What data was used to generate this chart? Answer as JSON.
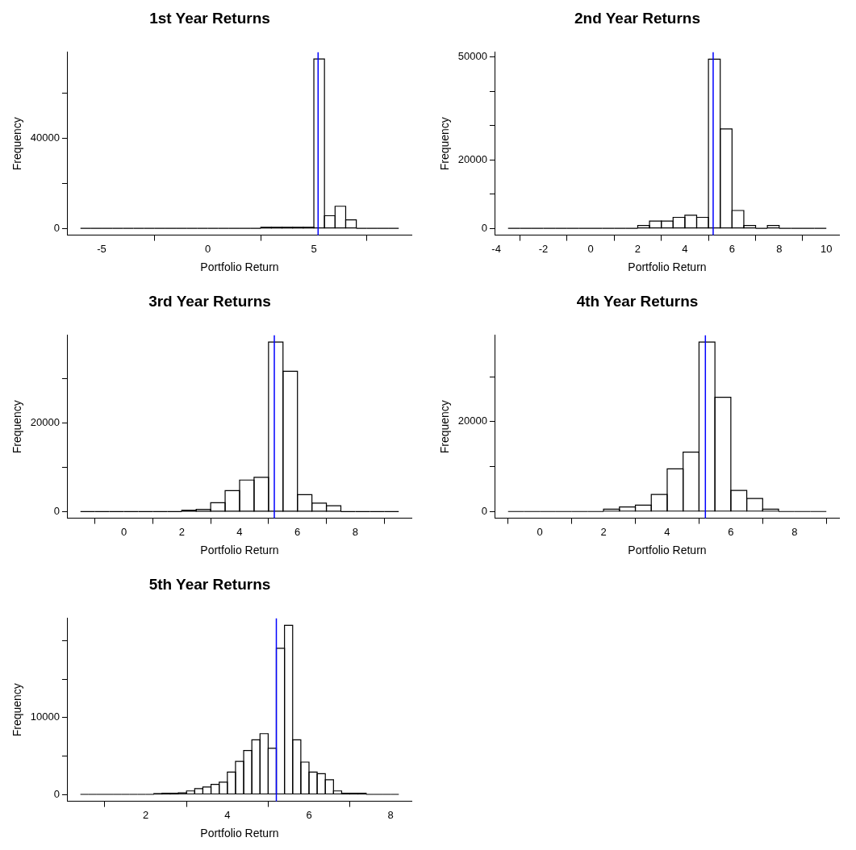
{
  "chart_data": [
    {
      "type": "histogram",
      "title": "1st Year Returns",
      "xlabel": "Portfolio Return",
      "ylabel": "Frequency",
      "bins": [
        -6,
        -5.5,
        -5,
        -4.5,
        -4,
        -3.5,
        -3,
        -2.5,
        -2,
        -1.5,
        -1,
        -0.5,
        0,
        0.5,
        1,
        1.5,
        2,
        2.5,
        3,
        3.5,
        4,
        4.5,
        5,
        5.5,
        6,
        6.5,
        7,
        7.5,
        8,
        8.5,
        9
      ],
      "values": [
        0,
        0,
        0,
        0,
        0,
        0,
        0,
        0,
        0,
        0,
        0,
        0,
        0,
        0,
        0,
        0,
        0,
        500,
        500,
        500,
        500,
        500,
        75000,
        5600,
        9800,
        3800,
        0,
        0,
        0,
        0
      ],
      "xlim": [
        -6.6,
        9.6
      ],
      "ylim": [
        -3000,
        78000
      ],
      "xticks": [
        -5,
        0,
        5
      ],
      "yticks": [
        0,
        {
          "value": 20000,
          "label": null
        },
        40000,
        {
          "value": 60000,
          "label": null
        }
      ],
      "ref_lines": [
        {
          "axis": "x",
          "value": 5.2,
          "color": "#0000ff"
        }
      ]
    },
    {
      "type": "histogram",
      "title": "2nd Year Returns",
      "xlabel": "Portfolio Return",
      "ylabel": "Frequency",
      "bins": [
        -3.5,
        -3,
        -2.5,
        -2,
        -1.5,
        -1,
        -0.5,
        0,
        0.5,
        1,
        1.5,
        2,
        2.5,
        3,
        3.5,
        4,
        4.5,
        5,
        5.5,
        6,
        6.5,
        7,
        7.5,
        8,
        8.5,
        9,
        9.5,
        10
      ],
      "values": [
        0,
        0,
        0,
        0,
        0,
        0,
        0,
        0,
        0,
        0,
        0,
        800,
        2100,
        2100,
        3200,
        3800,
        3200,
        49400,
        29000,
        5200,
        800,
        0,
        800,
        0,
        0,
        0,
        0
      ],
      "xlim": [
        -4.04,
        10.54
      ],
      "ylim": [
        -2000,
        51400
      ],
      "xticks": [
        -4,
        -2,
        0,
        2,
        4,
        6,
        8,
        10
      ],
      "yticks": [
        0,
        {
          "value": 10000,
          "label": null
        },
        20000,
        {
          "value": 30000,
          "label": null
        },
        {
          "value": 40000,
          "label": null
        },
        50000
      ],
      "ref_lines": [
        {
          "axis": "x",
          "value": 5.2,
          "color": "#0000ff"
        }
      ]
    },
    {
      "type": "histogram",
      "title": "3rd Year Returns",
      "xlabel": "Portfolio Return",
      "ylabel": "Frequency",
      "bins": [
        -1.5,
        -1,
        -0.5,
        0,
        0.5,
        1,
        1.5,
        2,
        2.5,
        3,
        3.5,
        4,
        4.5,
        5,
        5.5,
        6,
        6.5,
        7,
        7.5,
        8,
        8.5,
        9,
        9.5
      ],
      "values": [
        0,
        0,
        0,
        0,
        0,
        0,
        0,
        300,
        500,
        2000,
        4700,
        7100,
        7700,
        38200,
        31600,
        3800,
        1900,
        1300,
        0,
        0,
        0,
        0
      ],
      "xlim": [
        -1.94,
        9.94
      ],
      "ylim": [
        -1500,
        39700
      ],
      "xticks": [
        0,
        2,
        4,
        6,
        8
      ],
      "yticks": [
        0,
        {
          "value": 10000,
          "label": null
        },
        20000,
        {
          "value": 30000,
          "label": null
        }
      ],
      "ref_lines": [
        {
          "axis": "x",
          "value": 5.2,
          "color": "#0000ff"
        }
      ]
    },
    {
      "type": "histogram",
      "title": "4th Year Returns",
      "xlabel": "Portfolio Return",
      "ylabel": "Frequency",
      "bins": [
        -1,
        -0.5,
        0,
        0.5,
        1,
        1.5,
        2,
        2.5,
        3,
        3.5,
        4,
        4.5,
        5,
        5.5,
        6,
        6.5,
        7,
        7.5,
        8,
        8.5,
        9
      ],
      "values": [
        0,
        0,
        0,
        0,
        0,
        0,
        500,
        1000,
        1400,
        3800,
        9500,
        13200,
        37700,
        25400,
        4700,
        2900,
        500,
        0,
        0,
        0
      ],
      "xlim": [
        -1.4,
        9.4
      ],
      "ylim": [
        -1500,
        39200
      ],
      "xticks": [
        0,
        2,
        4,
        6,
        8
      ],
      "yticks": [
        0,
        {
          "value": 10000,
          "label": null
        },
        20000,
        {
          "value": 30000,
          "label": null
        }
      ],
      "ref_lines": [
        {
          "axis": "x",
          "value": 5.2,
          "color": "#0000ff"
        }
      ]
    },
    {
      "type": "histogram",
      "title": "5th Year Returns",
      "xlabel": "Portfolio Return",
      "ylabel": "Frequency",
      "bins": [
        0.4,
        0.6,
        0.8,
        1,
        1.2,
        1.4,
        1.6,
        1.8,
        2,
        2.2,
        2.4,
        2.6,
        2.8,
        3,
        3.2,
        3.4,
        3.6,
        3.8,
        4,
        4.2,
        4.4,
        4.6,
        4.8,
        5,
        5.2,
        5.4,
        5.6,
        5.8,
        6,
        6.2,
        6.4,
        6.6,
        6.8,
        7,
        7.2,
        7.4,
        7.6,
        7.8,
        8,
        8.2
      ],
      "values": [
        0,
        0,
        0,
        0,
        0,
        0,
        0,
        0,
        0,
        100,
        150,
        150,
        200,
        450,
        750,
        950,
        1300,
        1600,
        2900,
        4300,
        5700,
        7100,
        7900,
        6000,
        19000,
        22000,
        7100,
        4200,
        2900,
        2700,
        1900,
        450,
        150,
        150,
        150,
        0,
        0,
        0,
        0
      ],
      "xlim": [
        0.09,
        8.51
      ],
      "ylim": [
        -900,
        22900
      ],
      "xticks": [
        2,
        4,
        6,
        8
      ],
      "yticks": [
        0,
        {
          "value": 5000,
          "label": null
        },
        10000,
        {
          "value": 15000,
          "label": null
        },
        {
          "value": 20000,
          "label": null
        }
      ],
      "ref_lines": [
        {
          "axis": "x",
          "value": 5.2,
          "color": "#0000ff"
        }
      ]
    }
  ]
}
